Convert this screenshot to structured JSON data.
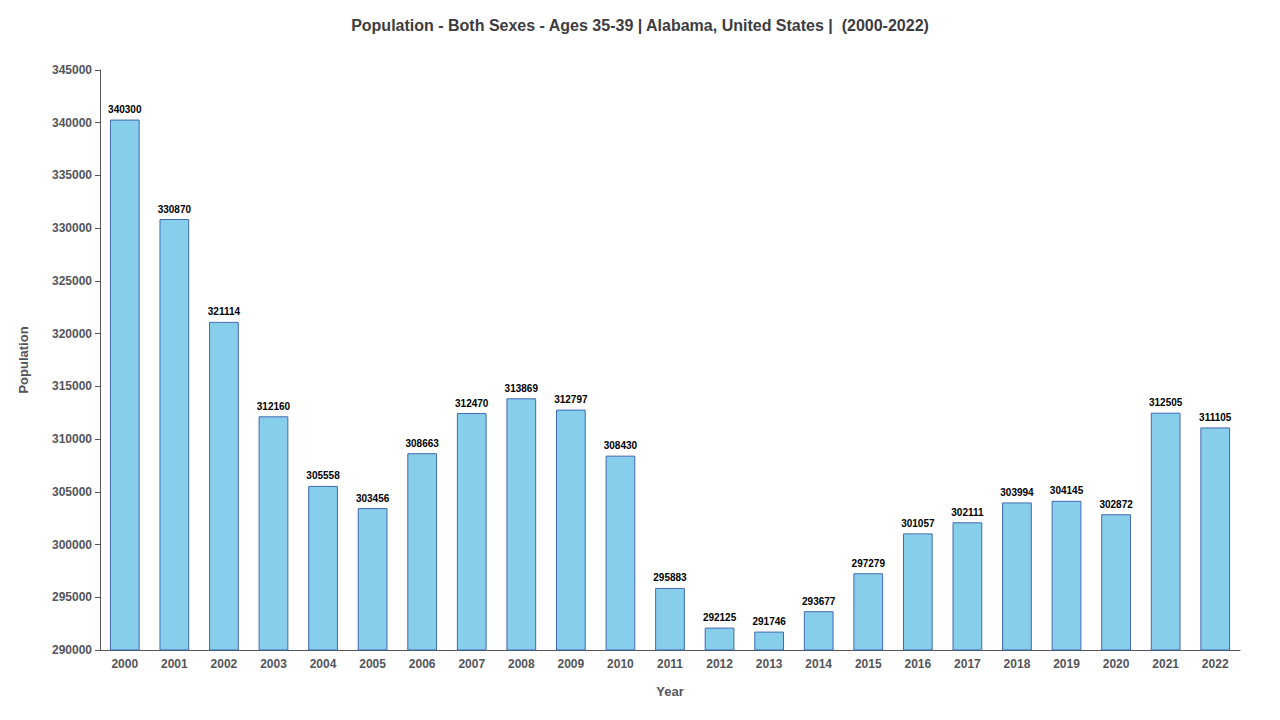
{
  "chart_data": {
    "type": "bar",
    "title": "Population - Both Sexes - Ages 35-39 | Alabama, United States |  (2000-2022)",
    "x_label": "Year",
    "y_label": "Population",
    "categories": [
      "2000",
      "2001",
      "2002",
      "2003",
      "2004",
      "2005",
      "2006",
      "2007",
      "2008",
      "2009",
      "2010",
      "2011",
      "2012",
      "2013",
      "2014",
      "2015",
      "2016",
      "2017",
      "2018",
      "2019",
      "2020",
      "2021",
      "2022"
    ],
    "values": [
      340300,
      330870,
      321114,
      312160,
      305558,
      303456,
      308663,
      312470,
      313869,
      312797,
      308430,
      295883,
      292125,
      291746,
      293677,
      297279,
      301057,
      302111,
      303994,
      304145,
      302872,
      312505,
      311105
    ],
    "color": "#87ceeb",
    "ylim": [
      290000,
      345000
    ],
    "yticks": [
      290000,
      295000,
      300000,
      305000,
      310000,
      315000,
      320000,
      325000,
      330000,
      335000,
      340000,
      345000
    ],
    "grid": false,
    "data_labels": true
  }
}
